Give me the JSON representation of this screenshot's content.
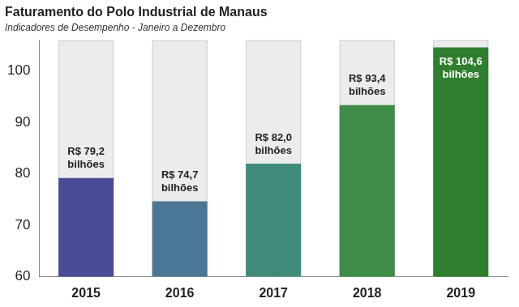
{
  "chart_data": {
    "type": "bar",
    "title": "Faturamento do Polo Industrial de Manaus",
    "subtitle": "Indicadores de Desempenho - Janeiro a Dezembro",
    "categories": [
      "2015",
      "2016",
      "2017",
      "2018",
      "2019"
    ],
    "values": [
      79.2,
      74.7,
      82.0,
      93.4,
      104.6
    ],
    "value_labels": [
      "R$ 79,2 bilhões",
      "R$ 74,7 bilhões",
      "R$ 82,0 bilhões",
      "R$ 93,4 bilhões",
      "R$ 104,6 bilhões"
    ],
    "colors": [
      "#484c94",
      "#4a7794",
      "#3f8a78",
      "#3f8c48",
      "#2f7f2f"
    ],
    "ylim": [
      60,
      106
    ],
    "yticks": [
      60,
      70,
      80,
      90,
      100
    ],
    "grid": false,
    "data_labels": true
  }
}
